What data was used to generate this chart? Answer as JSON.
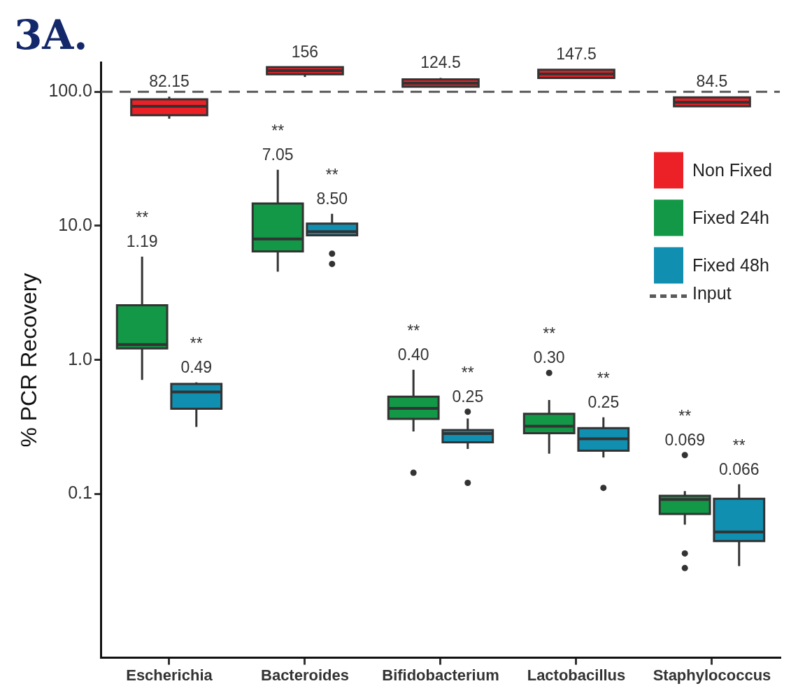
{
  "chart_data": {
    "type": "box",
    "title": "3A.",
    "ylabel": "% PCR Recovery",
    "categories": [
      "Escherichia",
      "Bacteroides",
      "Bifidobacterium",
      "Lactobacillus",
      "Staphylococcus"
    ],
    "log": true,
    "ylim": [
      0.006,
      165
    ],
    "yticks": [
      0.1,
      {
        "value": 1,
        "label": "1.0"
      },
      {
        "value": 10,
        "label": "10.0"
      },
      {
        "value": 100,
        "label": "100.0"
      }
    ],
    "legend": "top right",
    "ref_lines": [
      {
        "axis": "y",
        "value": 100,
        "label": "Input",
        "color": "#5a5a5a",
        "line_style": "dashed"
      }
    ],
    "series": [
      {
        "name": "Non Fixed",
        "color": "#ec2027",
        "boxes": [
          {
            "low": 63,
            "q1": 67,
            "median": 78,
            "q3": 88,
            "high": 92
          },
          {
            "low": 129,
            "q1": 135,
            "median": 144,
            "q3": 153,
            "high": 153
          },
          {
            "low": 109,
            "q1": 109,
            "median": 116,
            "q3": 124,
            "high": 127
          },
          {
            "low": 127,
            "q1": 127,
            "median": 136,
            "q3": 146,
            "high": 147
          },
          {
            "low": 78,
            "q1": 78,
            "median": 83.5,
            "q3": 91,
            "high": 92
          }
        ],
        "value_labels": [
          "82.15",
          "156",
          "124.5",
          "147.5",
          "84.5"
        ]
      },
      {
        "name": "Fixed 24h",
        "color": "#129846",
        "boxes": [
          {
            "low": 0.71,
            "q1": 1.22,
            "median": 1.3,
            "q3": 2.56,
            "high": 5.9
          },
          {
            "low": 4.55,
            "q1": 6.45,
            "median": 7.98,
            "q3": 14.7,
            "high": 26.2
          },
          {
            "low": 0.293,
            "q1": 0.363,
            "median": 0.435,
            "q3": 0.532,
            "high": 0.845,
            "outliers": [
              0.144
            ]
          },
          {
            "low": 0.2,
            "q1": 0.284,
            "median": 0.32,
            "q3": 0.396,
            "high": 0.502,
            "outliers": [
              0.8
            ]
          },
          {
            "low": 0.059,
            "q1": 0.071,
            "median": 0.091,
            "q3": 0.097,
            "high": 0.105,
            "outliers": [
              0.195,
              0.036,
              0.028
            ]
          }
        ],
        "value_labels": [
          "1.19",
          "7.05",
          "0.40",
          "0.30",
          "0.069"
        ]
      },
      {
        "name": "Fixed 48h",
        "color": "#118fb0",
        "boxes": [
          {
            "low": 0.316,
            "q1": 0.432,
            "median": 0.577,
            "q3": 0.662,
            "high": 0.68
          },
          {
            "low": 8.5,
            "q1": 8.5,
            "median": 9.05,
            "q3": 10.4,
            "high": 12.3,
            "outliers": [
              6.2,
              5.2
            ]
          },
          {
            "low": 0.217,
            "q1": 0.243,
            "median": 0.282,
            "q3": 0.3,
            "high": 0.365,
            "outliers": [
              0.411,
              0.121
            ]
          },
          {
            "low": 0.187,
            "q1": 0.21,
            "median": 0.258,
            "q3": 0.31,
            "high": 0.373,
            "outliers": [
              0.111
            ]
          },
          {
            "low": 0.029,
            "q1": 0.0445,
            "median": 0.052,
            "q3": 0.092,
            "high": 0.118
          }
        ],
        "value_labels": [
          "0.49",
          "8.50",
          "0.25",
          "0.25",
          "0.066"
        ]
      }
    ],
    "annotations": [
      "**",
      "**",
      "**",
      "**",
      "**",
      "**",
      "**",
      "**",
      "**",
      "**"
    ]
  }
}
